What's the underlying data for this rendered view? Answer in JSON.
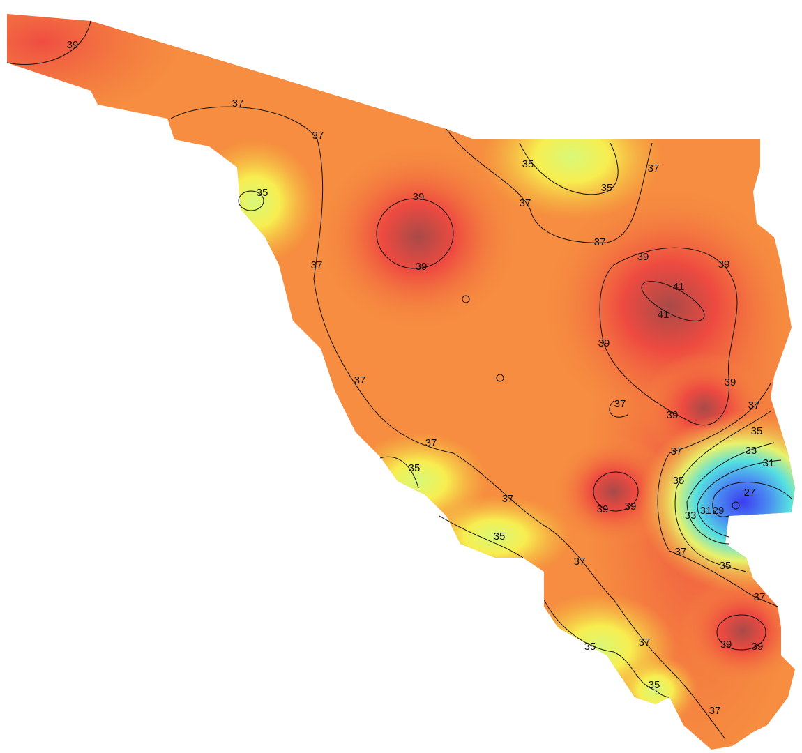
{
  "contour_labels": [
    "39",
    "37",
    "37",
    "35",
    "39",
    "39",
    "37",
    "35",
    "35",
    "37",
    "37",
    "37",
    "39",
    "39",
    "41",
    "41",
    "39",
    "39",
    "39",
    "37",
    "37",
    "37",
    "35",
    "33",
    "31",
    "27",
    "37",
    "35",
    "29",
    "31",
    "33",
    "37",
    "35",
    "37",
    "39",
    "39",
    "35",
    "37",
    "35",
    "37",
    "37",
    "39",
    "39",
    "37",
    "35",
    "35",
    "37"
  ]
}
